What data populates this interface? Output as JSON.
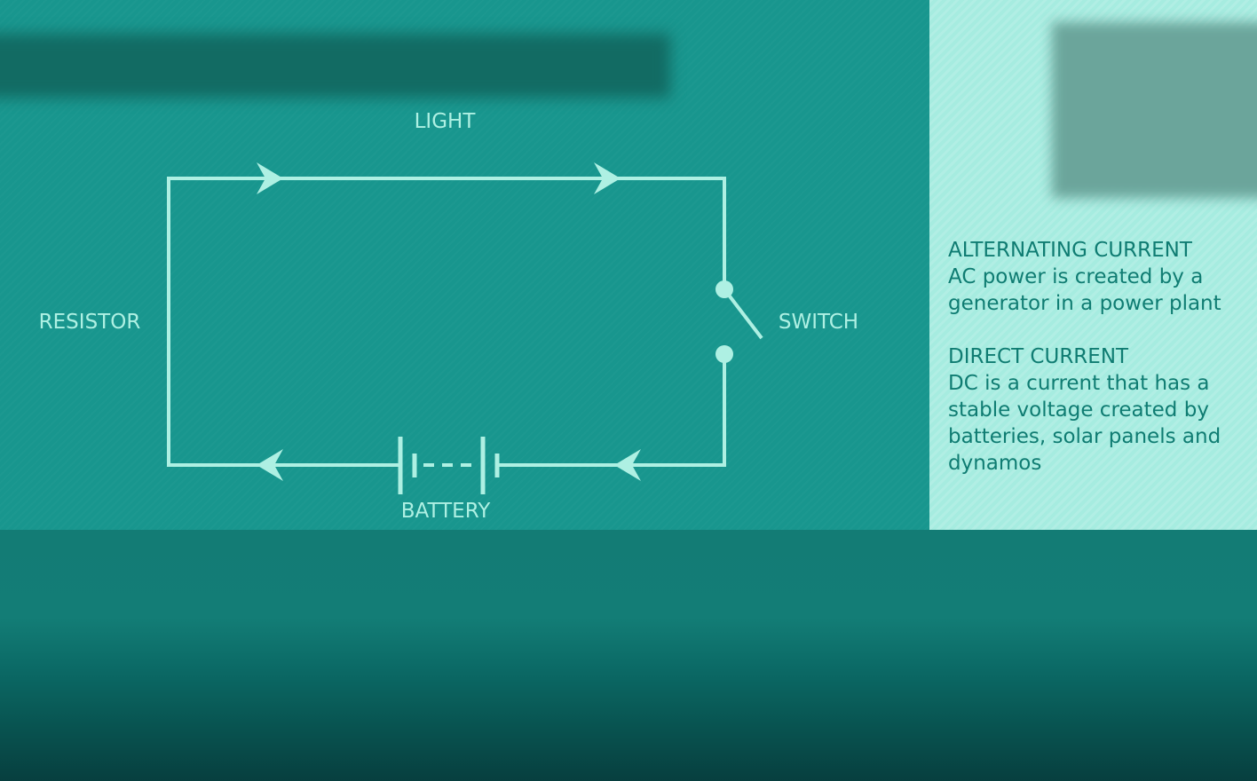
{
  "diagram": {
    "labels": {
      "light": "LIGHT",
      "resistor": "RESISTOR",
      "switch": "SWITCH",
      "battery": "BATTERY"
    },
    "wire_color": "#aef0e3",
    "panel_color": "#18968e"
  },
  "info": {
    "ac": {
      "heading": "ALTERNATING CURRENT",
      "body_lines": [
        "AC power is created by a",
        "generator in a power plant"
      ]
    },
    "dc": {
      "heading": "DIRECT CURRENT",
      "body_lines": [
        "DC is a current that has a",
        "stable voltage created by",
        "batteries, solar panels and",
        "dynamos"
      ]
    },
    "text_color": "#0f7c72",
    "panel_color": "#a6ece0"
  }
}
